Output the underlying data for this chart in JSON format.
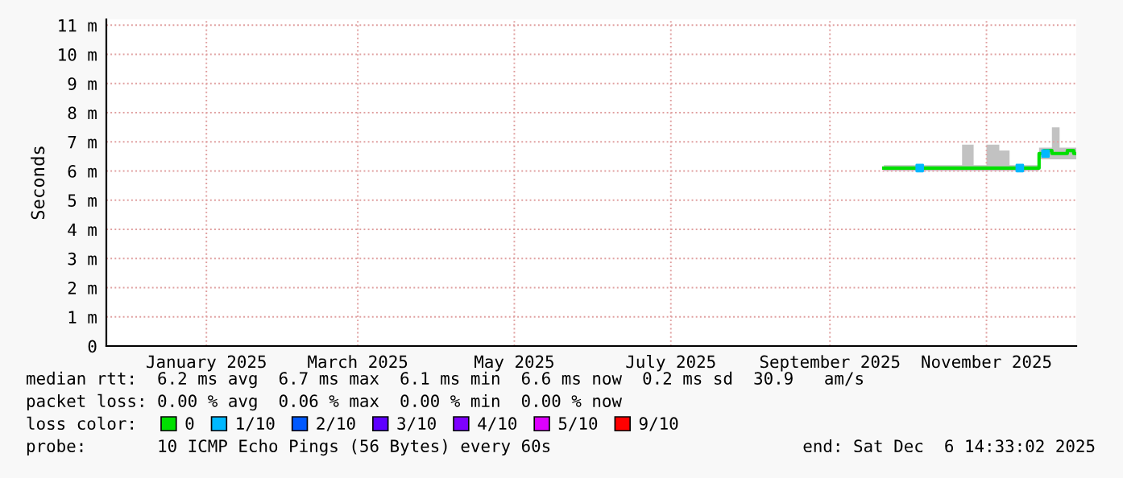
{
  "chart_data": {
    "type": "line",
    "ylabel": "Seconds",
    "x": [
      "2025-09-22",
      "2025-09-26",
      "2025-09-30",
      "2025-10-04",
      "2025-10-08",
      "2025-10-12",
      "2025-10-16",
      "2025-10-20",
      "2025-10-25",
      "2025-10-29",
      "2025-11-04",
      "2025-11-08",
      "2025-11-12",
      "2025-11-16",
      "2025-11-21",
      "2025-11-22",
      "2025-11-25",
      "2025-11-28",
      "2025-12-01",
      "2025-12-04",
      "2025-12-06"
    ],
    "series": [
      {
        "name": "0",
        "color": "#00e000",
        "values": [
          6.1,
          6.1,
          6.1,
          6.1,
          6.1,
          6.1,
          6.1,
          6.1,
          6.1,
          6.1,
          6.1,
          6.1,
          6.1,
          6.1,
          6.1,
          6.6,
          6.7,
          6.6,
          6.6,
          6.7,
          6.6
        ],
        "lower": [
          6.0,
          6.0,
          6.0,
          6.0,
          6.0,
          6.0,
          6.0,
          6.0,
          6.0,
          6.0,
          6.0,
          6.0,
          6.0,
          6.0,
          6.0,
          6.4,
          6.4,
          6.4,
          6.4,
          6.4,
          6.4
        ],
        "upper": [
          6.2,
          6.2,
          6.2,
          6.2,
          6.2,
          6.2,
          6.2,
          6.2,
          6.9,
          6.2,
          6.9,
          6.7,
          6.2,
          6.2,
          6.2,
          6.8,
          6.8,
          7.5,
          6.8,
          6.8,
          6.8
        ]
      },
      {
        "name": "1/10",
        "color": "#00b8ff",
        "type": "scatter",
        "x": [
          "2025-10-06",
          "2025-11-14",
          "2025-11-24"
        ],
        "values": [
          6.1,
          6.1,
          6.6
        ]
      },
      {
        "name": "2/10",
        "color": "#0059ff",
        "type": "scatter",
        "values": [
          null,
          null,
          null,
          null,
          null,
          null,
          null,
          null,
          null,
          null,
          null,
          null,
          null,
          null,
          null,
          null,
          null,
          null,
          null,
          null,
          null
        ]
      },
      {
        "name": "3/10",
        "color": "#5e00ff",
        "type": "scatter",
        "values": [
          null,
          null,
          null,
          null,
          null,
          null,
          null,
          null,
          null,
          null,
          null,
          null,
          null,
          null,
          null,
          null,
          null,
          null,
          null,
          null,
          null
        ]
      },
      {
        "name": "4/10",
        "color": "#7e00ff",
        "type": "scatter",
        "values": [
          null,
          null,
          null,
          null,
          null,
          null,
          null,
          null,
          null,
          null,
          null,
          null,
          null,
          null,
          null,
          null,
          null,
          null,
          null,
          null,
          null
        ]
      },
      {
        "name": "5/10",
        "color": "#dd00ff",
        "type": "scatter",
        "values": [
          null,
          null,
          null,
          null,
          null,
          null,
          null,
          null,
          null,
          null,
          null,
          null,
          null,
          null,
          null,
          null,
          null,
          null,
          null,
          null,
          null
        ]
      },
      {
        "name": "9/10",
        "color": "#ff0000",
        "type": "scatter",
        "values": [
          null,
          null,
          null,
          null,
          null,
          null,
          null,
          null,
          null,
          null,
          null,
          null,
          null,
          null,
          null,
          null,
          null,
          null,
          null,
          null,
          null
        ]
      }
    ],
    "xlim": [
      "2024-11-23",
      "2025-12-06"
    ],
    "xticks": [
      {
        "value": "2025-01-01",
        "label": "January 2025"
      },
      {
        "value": "2025-03-01",
        "label": "March 2025"
      },
      {
        "value": "2025-05-01",
        "label": "May 2025"
      },
      {
        "value": "2025-07-01",
        "label": "July 2025"
      },
      {
        "value": "2025-09-01",
        "label": "September 2025"
      },
      {
        "value": "2025-11-01",
        "label": "November 2025"
      }
    ],
    "ylim": [
      0,
      11.2
    ],
    "yticks": [
      0,
      {
        "value": 1,
        "label": "1 m"
      },
      {
        "value": 2,
        "label": "2 m"
      },
      {
        "value": 3,
        "label": "3 m"
      },
      {
        "value": 4,
        "label": "4 m"
      },
      {
        "value": 5,
        "label": "5 m"
      },
      {
        "value": 6,
        "label": "6 m"
      },
      {
        "value": 7,
        "label": "7 m"
      },
      {
        "value": 8,
        "label": "8 m"
      },
      {
        "value": 9,
        "label": "9 m"
      },
      {
        "value": 10,
        "label": "10 m"
      },
      {
        "value": 11,
        "label": "11 m"
      }
    ],
    "grid": true,
    "legend": "bottom",
    "annotations": [
      "median rtt:  6.2 ms avg  6.7 ms max  6.1 ms min  6.6 ms now  0.2 ms sd  30.9   am/s",
      "packet loss: 0.00 % avg  0.06 % max  0.00 % min  0.00 % now",
      "loss color:",
      "probe:       10 ICMP Echo Pings (56 Bytes) every 60s",
      "end: Sat Dec  6 14:33:02 2025"
    ]
  }
}
